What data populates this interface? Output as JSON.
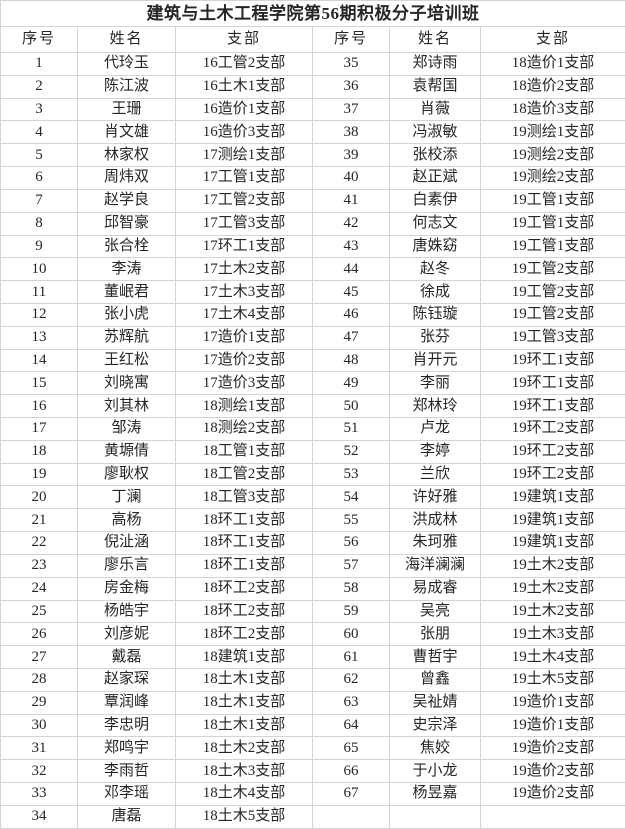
{
  "title": "建筑与土木工程学院第56期积极分子培训班",
  "colors": {
    "background": "#ffffff",
    "grid_line": "#d4d4d4",
    "text": "#262626"
  },
  "table": {
    "headers": [
      "序号",
      "姓名",
      "支部",
      "序号",
      "姓名",
      "支部"
    ],
    "rows": [
      [
        "1",
        "代玲玉",
        "16工管2支部",
        "35",
        "郑诗雨",
        "18造价1支部"
      ],
      [
        "2",
        "陈江波",
        "16土木1支部",
        "36",
        "袁帮国",
        "18造价2支部"
      ],
      [
        "3",
        "王珊",
        "16造价1支部",
        "37",
        "肖薇",
        "18造价3支部"
      ],
      [
        "4",
        "肖文雄",
        "16造价3支部",
        "38",
        "冯淑敏",
        "19测绘1支部"
      ],
      [
        "5",
        "林家权",
        "17测绘1支部",
        "39",
        "张校添",
        "19测绘2支部"
      ],
      [
        "6",
        "周炜双",
        "17工管1支部",
        "40",
        "赵正斌",
        "19测绘2支部"
      ],
      [
        "7",
        "赵学良",
        "17工管2支部",
        "41",
        "白素伊",
        "19工管1支部"
      ],
      [
        "8",
        "邱智豪",
        "17工管3支部",
        "42",
        "何志文",
        "19工管1支部"
      ],
      [
        "9",
        "张合栓",
        "17环工1支部",
        "43",
        "唐姝窈",
        "19工管1支部"
      ],
      [
        "10",
        "李涛",
        "17土木2支部",
        "44",
        "赵冬",
        "19工管2支部"
      ],
      [
        "11",
        "董岷君",
        "17土木3支部",
        "45",
        "徐成",
        "19工管2支部"
      ],
      [
        "12",
        "张小虎",
        "17土木4支部",
        "46",
        "陈钰璇",
        "19工管2支部"
      ],
      [
        "13",
        "苏辉航",
        "17造价1支部",
        "47",
        "张芬",
        "19工管3支部"
      ],
      [
        "14",
        "王红松",
        "17造价2支部",
        "48",
        "肖开元",
        "19环工1支部"
      ],
      [
        "15",
        "刘晓寓",
        "17造价3支部",
        "49",
        "李丽",
        "19环工1支部"
      ],
      [
        "16",
        "刘其林",
        "18测绘1支部",
        "50",
        "郑林玲",
        "19环工1支部"
      ],
      [
        "17",
        "邹涛",
        "18测绘2支部",
        "51",
        "卢龙",
        "19环工2支部"
      ],
      [
        "18",
        "黄塬倩",
        "18工管1支部",
        "52",
        "李婷",
        "19环工2支部"
      ],
      [
        "19",
        "廖耿权",
        "18工管2支部",
        "53",
        "兰欣",
        "19环工2支部"
      ],
      [
        "20",
        "丁澜",
        "18工管3支部",
        "54",
        "许好雅",
        "19建筑1支部"
      ],
      [
        "21",
        "高杨",
        "18环工1支部",
        "55",
        "洪成林",
        "19建筑1支部"
      ],
      [
        "22",
        "倪沚涵",
        "18环工1支部",
        "56",
        "朱珂雅",
        "19建筑1支部"
      ],
      [
        "23",
        "廖乐言",
        "18环工1支部",
        "57",
        "海洋澜澜",
        "19土木2支部"
      ],
      [
        "24",
        "房金梅",
        "18环工2支部",
        "58",
        "易成睿",
        "19土木2支部"
      ],
      [
        "25",
        "杨皓宇",
        "18环工2支部",
        "59",
        "吴亮",
        "19土木2支部"
      ],
      [
        "26",
        "刘彦妮",
        "18环工2支部",
        "60",
        "张朋",
        "19土木3支部"
      ],
      [
        "27",
        "戴磊",
        "18建筑1支部",
        "61",
        "曹哲宇",
        "19土木4支部"
      ],
      [
        "28",
        "赵家琛",
        "18土木1支部",
        "62",
        "曾鑫",
        "19土木5支部"
      ],
      [
        "29",
        "覃润峰",
        "18土木1支部",
        "63",
        "吴祉婧",
        "19造价1支部"
      ],
      [
        "30",
        "李忠明",
        "18土木1支部",
        "64",
        "史宗泽",
        "19造价1支部"
      ],
      [
        "31",
        "郑鸣宇",
        "18土木2支部",
        "65",
        "焦姣",
        "19造价2支部"
      ],
      [
        "32",
        "李雨哲",
        "18土木3支部",
        "66",
        "于小龙",
        "19造价2支部"
      ],
      [
        "33",
        "邓李瑶",
        "18土木4支部",
        "67",
        "杨昱嘉",
        "19造价2支部"
      ],
      [
        "34",
        "唐磊",
        "18土木5支部",
        "",
        "",
        ""
      ]
    ]
  }
}
